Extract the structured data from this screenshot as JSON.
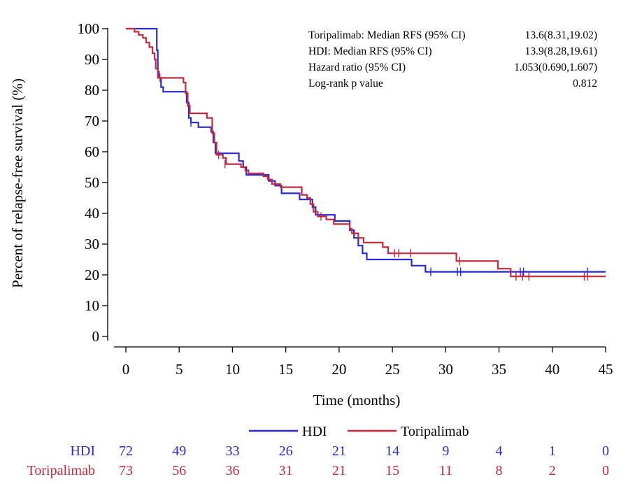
{
  "chart_data": {
    "type": "line",
    "subtype": "kaplan-meier",
    "title": "",
    "xlabel": "Time (months)",
    "ylabel": "Percent of relapse-free survival (%)",
    "xlim": [
      0,
      45
    ],
    "ylim": [
      0,
      100
    ],
    "xticks": [
      0,
      5,
      10,
      15,
      20,
      25,
      30,
      35,
      40,
      45
    ],
    "yticks": [
      0,
      10,
      20,
      30,
      40,
      50,
      60,
      70,
      80,
      90,
      100
    ],
    "grid": false,
    "legend_position": "bottom",
    "stats": [
      {
        "label": "Toripalimab: Median RFS (95% CI)",
        "value": "13.6(8.31,19.02)"
      },
      {
        "label": "HDI: Median RFS (95% CI)",
        "value": "13.9(8.28,19.61)"
      },
      {
        "label": "Hazard ratio (95% CI)",
        "value": "1.053(0.690,1.607)"
      },
      {
        "label": "Log-rank p value",
        "value": "0.812"
      }
    ],
    "series": [
      {
        "name": "HDI",
        "color": "#2a2ad4",
        "steps": [
          [
            0,
            100
          ],
          [
            2.8,
            100
          ],
          [
            2.9,
            93
          ],
          [
            3.0,
            86
          ],
          [
            3.1,
            84
          ],
          [
            3.3,
            81
          ],
          [
            3.5,
            79.5
          ],
          [
            5.5,
            79.5
          ],
          [
            5.7,
            76
          ],
          [
            5.9,
            71
          ],
          [
            6.1,
            69.5
          ],
          [
            6.6,
            69.5
          ],
          [
            6.8,
            68
          ],
          [
            7.9,
            68
          ],
          [
            8.0,
            66.5
          ],
          [
            8.2,
            63
          ],
          [
            8.4,
            59.5
          ],
          [
            10.4,
            59.5
          ],
          [
            10.6,
            57
          ],
          [
            11.0,
            55
          ],
          [
            11.3,
            52.5
          ],
          [
            13.2,
            52.5
          ],
          [
            13.4,
            50.5
          ],
          [
            14.0,
            49
          ],
          [
            14.6,
            46.5
          ],
          [
            16.0,
            46.5
          ],
          [
            16.3,
            44.5
          ],
          [
            17.3,
            44.5
          ],
          [
            17.5,
            42
          ],
          [
            17.8,
            39.5
          ],
          [
            19.4,
            39.5
          ],
          [
            19.6,
            37.5
          ],
          [
            20.8,
            37.5
          ],
          [
            21.0,
            34.5
          ],
          [
            21.4,
            32
          ],
          [
            21.8,
            29.5
          ],
          [
            22.2,
            27
          ],
          [
            22.6,
            25
          ],
          [
            26.6,
            25
          ],
          [
            26.8,
            23
          ],
          [
            27.8,
            23
          ],
          [
            28.1,
            21
          ],
          [
            45,
            21
          ]
        ],
        "censored": [
          [
            3.0,
            86
          ],
          [
            5.8,
            76
          ],
          [
            6.1,
            69.5
          ],
          [
            28.6,
            21
          ],
          [
            31.1,
            21
          ],
          [
            31.4,
            21
          ],
          [
            37.0,
            21
          ],
          [
            37.3,
            21
          ],
          [
            43.3,
            21
          ]
        ]
      },
      {
        "name": "Toripalimab",
        "color": "#c8283c",
        "steps": [
          [
            0,
            100
          ],
          [
            0.8,
            99
          ],
          [
            1.2,
            98
          ],
          [
            1.6,
            97
          ],
          [
            1.9,
            95.5
          ],
          [
            2.2,
            94
          ],
          [
            2.5,
            92
          ],
          [
            2.7,
            90
          ],
          [
            2.8,
            87
          ],
          [
            3.0,
            84
          ],
          [
            3.4,
            84
          ],
          [
            3.6,
            84
          ],
          [
            5.4,
            82.5
          ],
          [
            5.6,
            79
          ],
          [
            5.8,
            75
          ],
          [
            6.0,
            72.5
          ],
          [
            7.4,
            72.5
          ],
          [
            7.6,
            71
          ],
          [
            8.0,
            71
          ],
          [
            8.1,
            66
          ],
          [
            8.3,
            63
          ],
          [
            8.5,
            59
          ],
          [
            8.9,
            59
          ],
          [
            9.1,
            58
          ],
          [
            9.4,
            56
          ],
          [
            10.6,
            56
          ],
          [
            10.8,
            55
          ],
          [
            11.2,
            54
          ],
          [
            11.5,
            53
          ],
          [
            12.6,
            53
          ],
          [
            12.9,
            52
          ],
          [
            13.3,
            51
          ],
          [
            13.7,
            49.5
          ],
          [
            14.2,
            49.5
          ],
          [
            14.5,
            48.5
          ],
          [
            16.2,
            48.5
          ],
          [
            16.5,
            46
          ],
          [
            17.0,
            45
          ],
          [
            17.3,
            43
          ],
          [
            17.6,
            40.5
          ],
          [
            18.0,
            39
          ],
          [
            18.8,
            38
          ],
          [
            19.5,
            36.5
          ],
          [
            21.0,
            35
          ],
          [
            21.2,
            33.5
          ],
          [
            21.8,
            32
          ],
          [
            22.3,
            30.5
          ],
          [
            23.8,
            30.5
          ],
          [
            24.1,
            29
          ],
          [
            24.6,
            27
          ],
          [
            30.8,
            27
          ],
          [
            31.0,
            24.5
          ],
          [
            34.7,
            24.5
          ],
          [
            34.9,
            22
          ],
          [
            35.9,
            22
          ],
          [
            36.1,
            19.5
          ],
          [
            45,
            19.5
          ]
        ],
        "censored": [
          [
            3.2,
            84
          ],
          [
            8.7,
            59
          ],
          [
            9.3,
            56
          ],
          [
            18.3,
            39
          ],
          [
            25.2,
            27
          ],
          [
            25.6,
            27
          ],
          [
            26.7,
            27
          ],
          [
            31.3,
            24.5
          ],
          [
            36.6,
            19.5
          ],
          [
            37.2,
            19.5
          ],
          [
            37.8,
            19.5
          ],
          [
            43.0,
            19.5
          ],
          [
            43.3,
            19.5
          ]
        ]
      }
    ],
    "risk_table": {
      "times": [
        0,
        5,
        10,
        15,
        20,
        25,
        30,
        35,
        40,
        45
      ],
      "rows": [
        {
          "label": "HDI",
          "color": "#2a2ad4",
          "values": [
            "72",
            "49",
            "33",
            "26",
            "21",
            "14",
            "9",
            "4",
            "1",
            "0"
          ]
        },
        {
          "label": "Toripalimab",
          "color": "#c8283c",
          "values": [
            "73",
            "56",
            "36",
            "31",
            "21",
            "15",
            "11",
            "8",
            "2",
            "0"
          ]
        }
      ]
    }
  }
}
